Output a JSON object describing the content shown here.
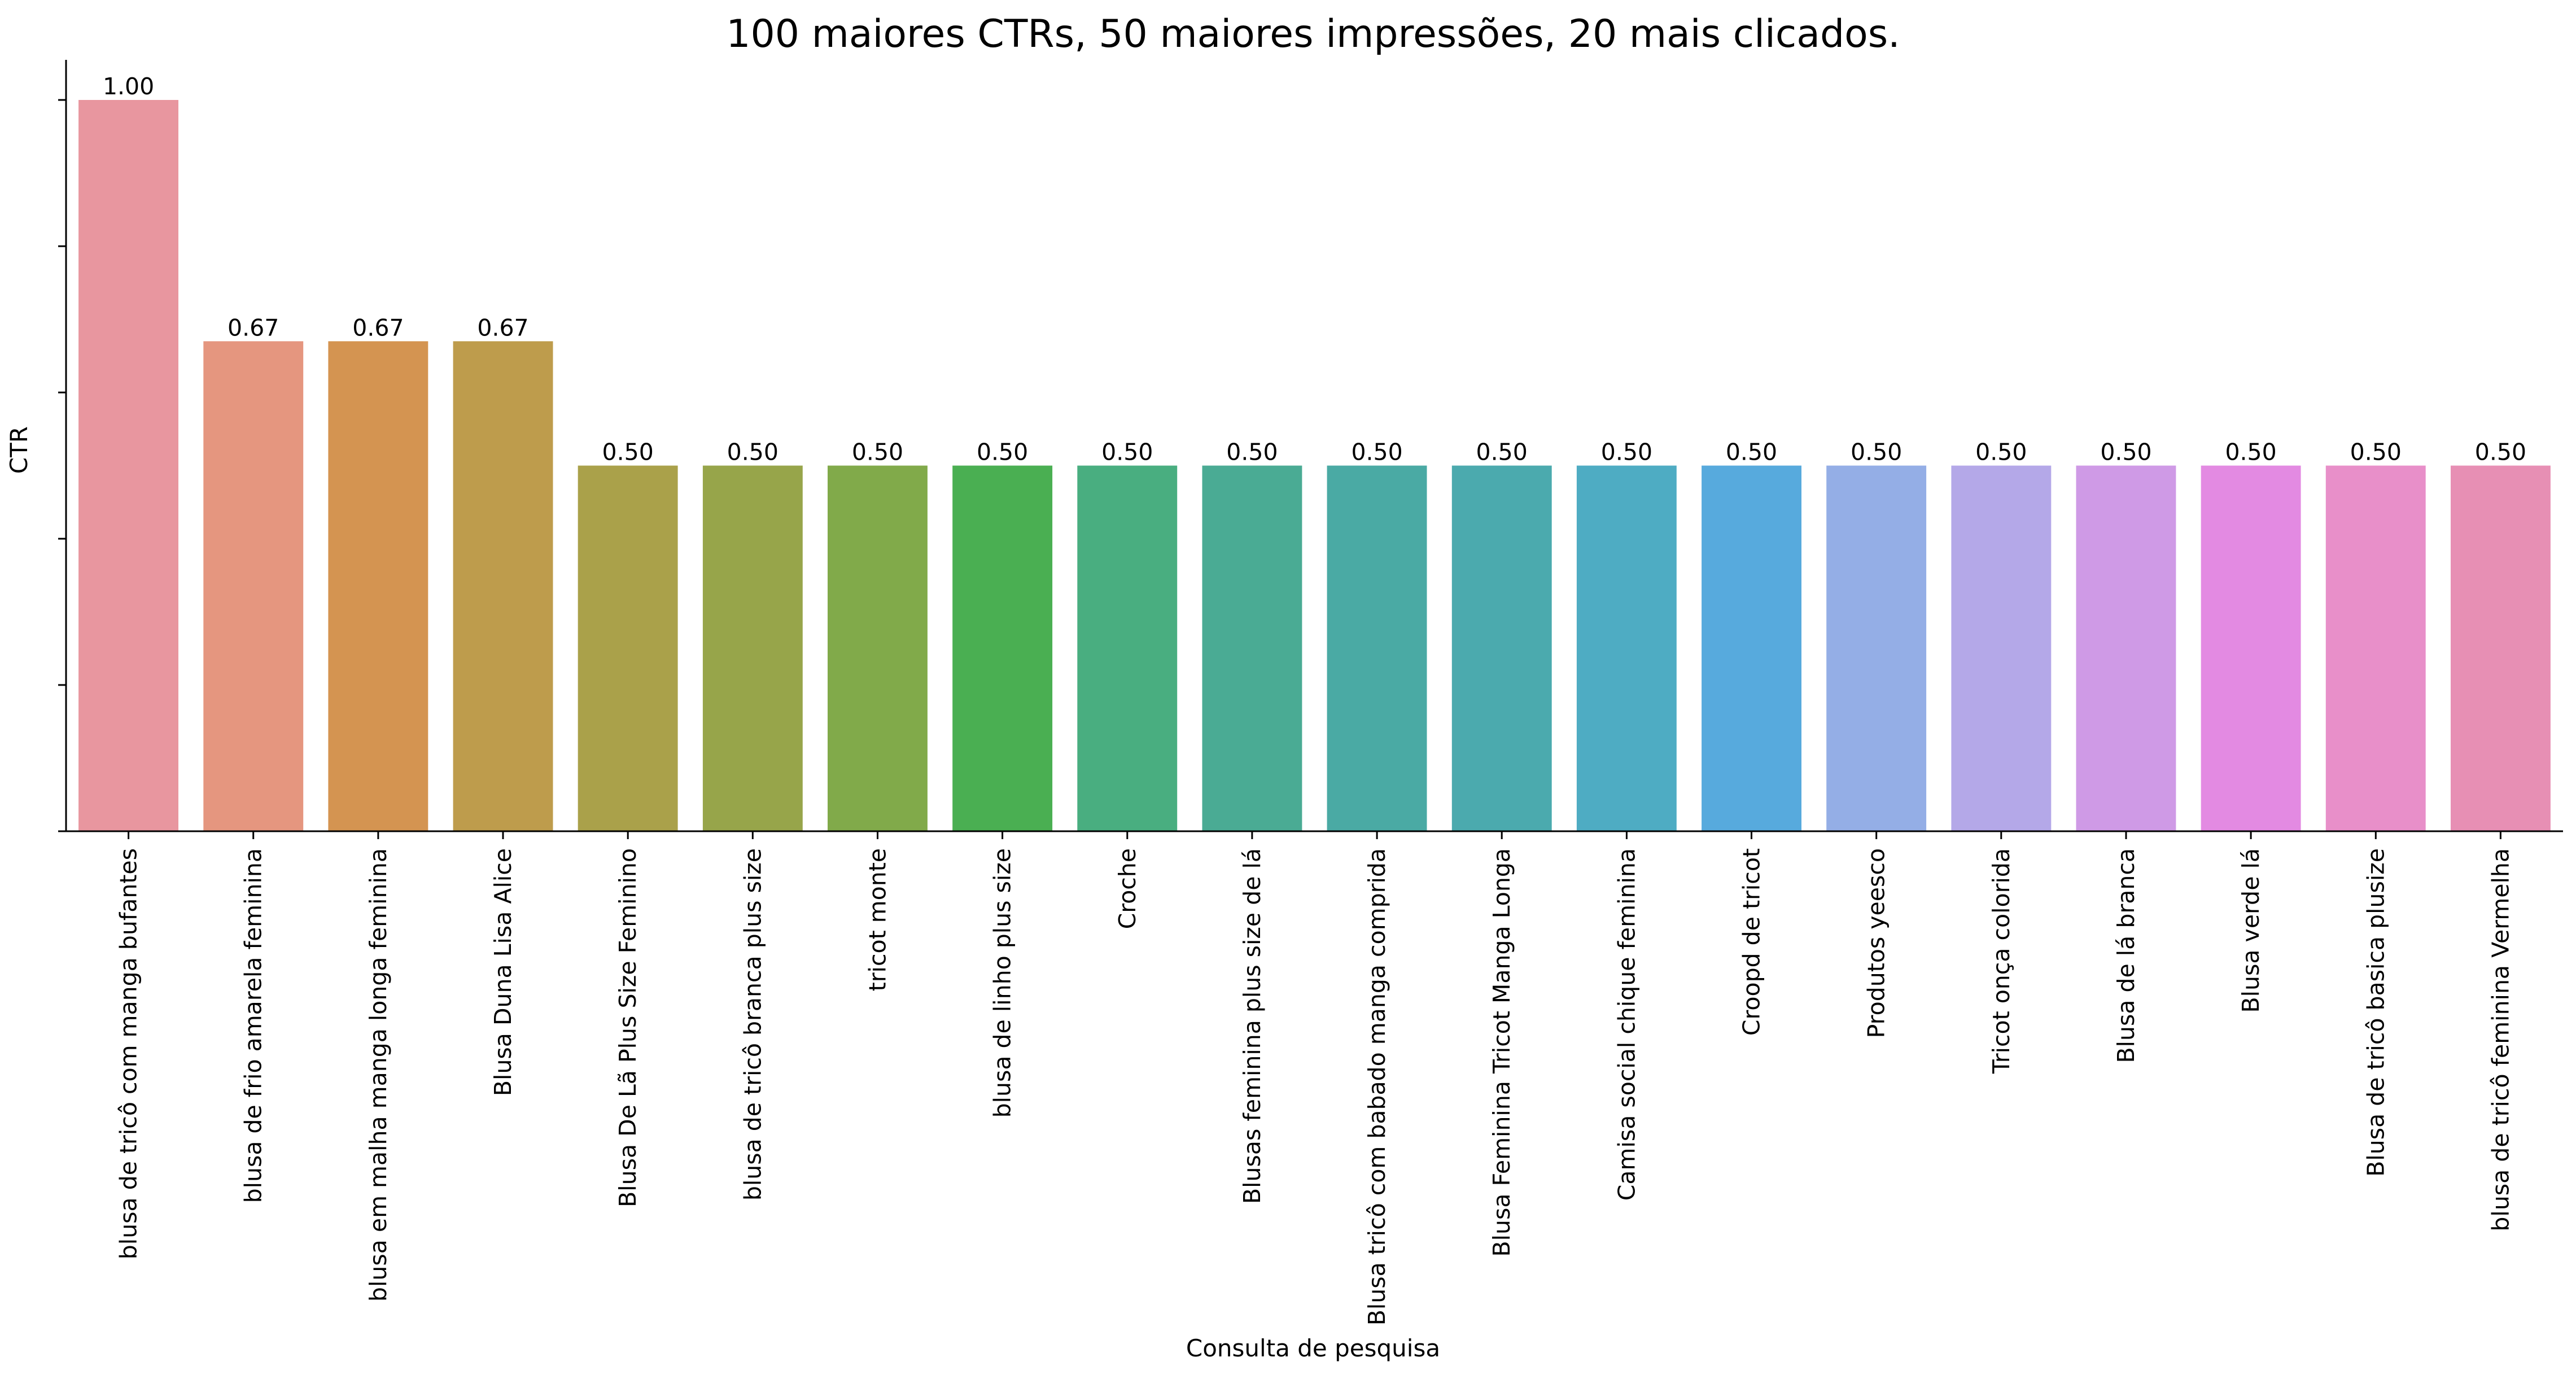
{
  "chart_data": {
    "type": "bar",
    "title": "100 maiores CTRs, 50 maiores impressões, 20 mais clicados.",
    "xlabel": "Consulta de pesquisa",
    "ylabel": "CTR",
    "ylim": [
      0,
      1.05
    ],
    "y_tick_labels_visible": false,
    "grid": false,
    "legend": "none",
    "categories": [
      "blusa de tricô com manga bufantes",
      "blusa de frio amarela feminina",
      "blusa em malha manga longa feminina",
      "Blusa Duna Lisa Alice",
      "Blusa De Lã Plus Size Feminino",
      "blusa de tricô branca plus size",
      "tricot monte",
      "blusa de linho plus size",
      "Croche",
      "Blusas feminina plus size de lá",
      "Blusa tricô com babado manga comprida",
      "Blusa Feminina Tricot Manga Longa",
      "Camisa social chique feminina",
      "Croopd de tricot",
      "Produtos yeesco",
      "Tricot onça colorida",
      "Blusa de lá branca",
      "Blusa verde lá",
      "Blusa de tricô basica plusize",
      "blusa de tricô feminina Vermelha"
    ],
    "values": [
      1.0,
      0.67,
      0.67,
      0.67,
      0.5,
      0.5,
      0.5,
      0.5,
      0.5,
      0.5,
      0.5,
      0.5,
      0.5,
      0.5,
      0.5,
      0.5,
      0.5,
      0.5,
      0.5,
      0.5
    ],
    "data_labels": [
      "1.00",
      "0.67",
      "0.67",
      "0.67",
      "0.50",
      "0.50",
      "0.50",
      "0.50",
      "0.50",
      "0.50",
      "0.50",
      "0.50",
      "0.50",
      "0.50",
      "0.50",
      "0.50",
      "0.50",
      "0.50",
      "0.50",
      "0.50"
    ],
    "colors": [
      "#E8969F",
      "#E5967F",
      "#D49451",
      "#BE9C4C",
      "#AAA14A",
      "#97A54A",
      "#81AA4A",
      "#4AAF52",
      "#49AE80",
      "#4AAB94",
      "#4AAAA4",
      "#4BAAAE",
      "#4EACC3",
      "#57AADD",
      "#94AEE6",
      "#B4A8E8",
      "#CF9AE6",
      "#E38AE2",
      "#E88FC9",
      "#E78FB4"
    ]
  }
}
